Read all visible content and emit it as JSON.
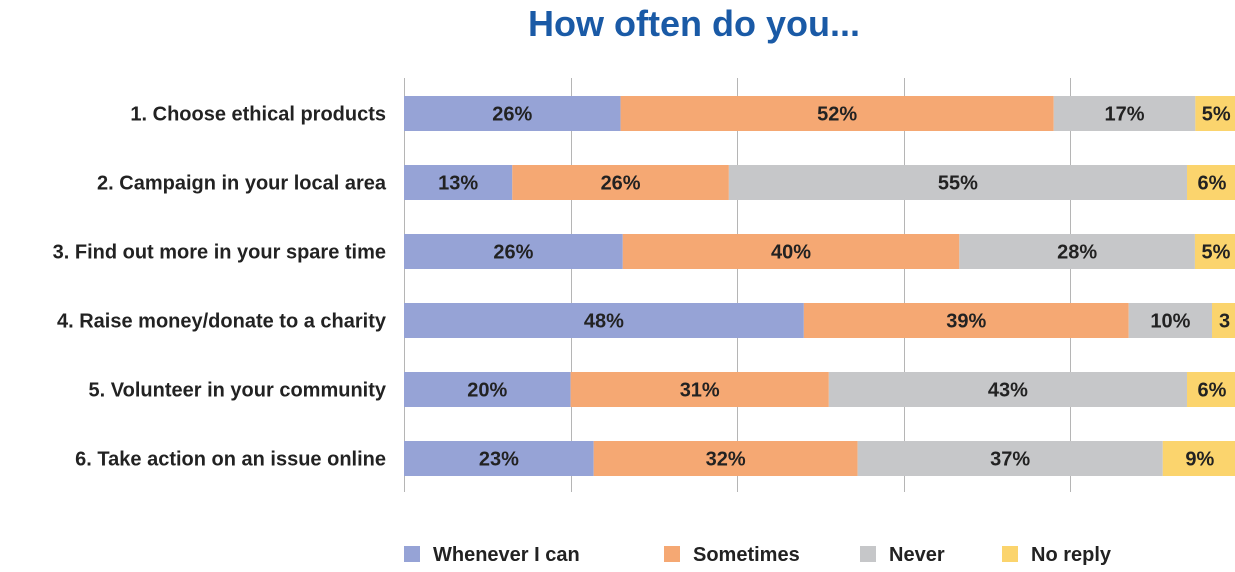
{
  "chart_data": {
    "type": "bar",
    "orientation": "horizontal",
    "stacked": true,
    "title": "How often do you...",
    "title_color": "#1a5aa6",
    "categories": [
      "1. Choose ethical products",
      "2. Campaign in your local area",
      "3. Find out more in your spare time",
      "4. Raise money/donate to a charity",
      "5. Volunteer in your community",
      "6. Take action on an issue online"
    ],
    "series": [
      {
        "name": "Whenever I can",
        "color": "#96a3d6",
        "values": [
          26,
          13,
          26,
          48,
          20,
          23
        ]
      },
      {
        "name": "Sometimes",
        "color": "#f5a873",
        "values": [
          52,
          26,
          40,
          39,
          31,
          32
        ]
      },
      {
        "name": "Never",
        "color": "#c6c7c9",
        "values": [
          17,
          55,
          28,
          10,
          43,
          37
        ]
      },
      {
        "name": "No reply",
        "color": "#fbd46d",
        "values": [
          5,
          6,
          5,
          3,
          6,
          9
        ]
      }
    ],
    "data_labels": [
      [
        "26%",
        "52%",
        "17%",
        "5%"
      ],
      [
        "13%",
        "26%",
        "55%",
        "6%"
      ],
      [
        "26%",
        "40%",
        "28%",
        "5%"
      ],
      [
        "48%",
        "39%",
        "10%",
        "3"
      ],
      [
        "20%",
        "31%",
        "43%",
        "6%"
      ],
      [
        "23%",
        "32%",
        "37%",
        "9%"
      ]
    ],
    "xlim": [
      0,
      100
    ],
    "grid": true,
    "legend": "bottom"
  }
}
